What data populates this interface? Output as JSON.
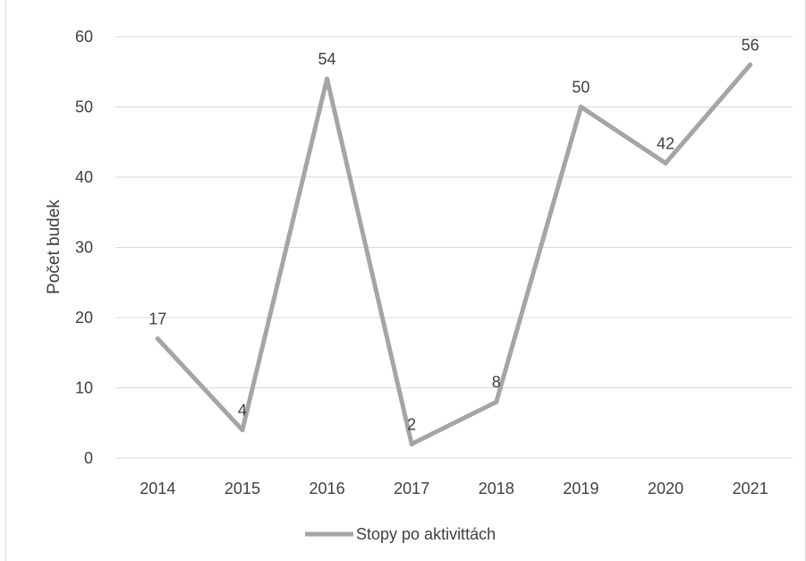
{
  "chart_data": {
    "type": "line",
    "categories": [
      "2014",
      "2015",
      "2016",
      "2017",
      "2018",
      "2019",
      "2020",
      "2021"
    ],
    "series": [
      {
        "name": "Stopy po aktivittách",
        "values": [
          17,
          4,
          54,
          2,
          8,
          50,
          42,
          56
        ],
        "color": "#a5a5a5"
      }
    ],
    "data_labels": [
      "17",
      "4",
      "54",
      "2",
      "8",
      "50",
      "42",
      "56"
    ],
    "title": "",
    "xlabel": "",
    "ylabel": "Počet budek",
    "ylim": [
      0,
      60
    ],
    "yticks": [
      "0",
      "10",
      "20",
      "30",
      "40",
      "50",
      "60"
    ],
    "grid": true,
    "legend_position": "bottom",
    "colors": {
      "line": "#a5a5a5",
      "grid": "#d9d9d9",
      "text": "#404040"
    }
  }
}
